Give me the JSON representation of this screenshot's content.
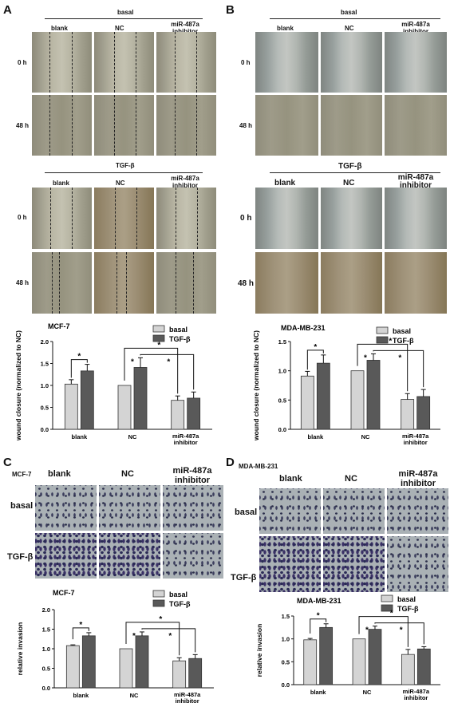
{
  "panels": {
    "A": {
      "letter": "A",
      "top_group": "basal",
      "bottom_group": "TGF-β",
      "times": [
        "0 h",
        "48 h"
      ],
      "columns": [
        "blank",
        "NC",
        "miR-487a inhibitor"
      ]
    },
    "B": {
      "letter": "B",
      "top_group": "basal",
      "bottom_group": "TGF-β",
      "times": [
        "0 h",
        "48 h"
      ],
      "columns": [
        "blank",
        "NC",
        "miR-487a inhibitor"
      ]
    },
    "C": {
      "letter": "C",
      "cell_line": "MCF-7",
      "rows": [
        "basal",
        "TGF-β"
      ],
      "columns": [
        "blank",
        "NC",
        "miR-487a inhibitor"
      ]
    },
    "D": {
      "letter": "D",
      "cell_line": "MDA-MB-231",
      "rows": [
        "basal",
        "TGF-β"
      ],
      "columns": [
        "blank",
        "NC",
        "miR-487a inhibitor"
      ]
    }
  },
  "colors": {
    "basal": "#d4d4d4",
    "tgf": "#595959"
  },
  "chart_data": [
    {
      "id": "A-chart",
      "type": "bar",
      "title": "MCF-7",
      "ylabel": "wound closure (normalized to NC)",
      "categories": [
        "blank",
        "NC",
        "miR-487a inhibitor"
      ],
      "ylim": [
        0.0,
        2.0
      ],
      "yticks": [
        "0.0",
        "0.5",
        "1.0",
        "1.5",
        "2.0"
      ],
      "series": [
        {
          "name": "basal",
          "values": [
            1.03,
            1.0,
            0.66
          ],
          "errors": [
            0.1,
            0.0,
            0.1
          ]
        },
        {
          "name": "TGF-β",
          "values": [
            1.33,
            1.41,
            0.71
          ],
          "errors": [
            0.15,
            0.22,
            0.14
          ]
        }
      ],
      "legend": "top-right",
      "significance": "*"
    },
    {
      "id": "B-chart",
      "type": "bar",
      "title": "MDA-MB-231",
      "ylabel": "wound closure (normalized to NC)",
      "categories": [
        "blank",
        "NC",
        "miR-487a inhibitor"
      ],
      "ylim": [
        0.0,
        1.5
      ],
      "yticks": [
        "0.0",
        "0.5",
        "1.0",
        "1.5"
      ],
      "series": [
        {
          "name": "basal",
          "values": [
            0.91,
            1.0,
            0.51
          ],
          "errors": [
            0.08,
            0.0,
            0.1
          ]
        },
        {
          "name": "TGF-β",
          "values": [
            1.13,
            1.18,
            0.56
          ],
          "errors": [
            0.14,
            0.11,
            0.12
          ]
        }
      ],
      "legend": "top-right",
      "significance": "*"
    },
    {
      "id": "C-chart",
      "type": "bar",
      "title": "MCF-7",
      "ylabel": "relative invasion",
      "categories": [
        "blank",
        "NC",
        "miR-487a inhibitor"
      ],
      "ylim": [
        0.0,
        2.0
      ],
      "yticks": [
        "0.0",
        "0.5",
        "1.0",
        "1.5",
        "2.0"
      ],
      "series": [
        {
          "name": "basal",
          "values": [
            1.08,
            1.0,
            0.69
          ],
          "errors": [
            0.02,
            0.0,
            0.08
          ]
        },
        {
          "name": "TGF-β",
          "values": [
            1.33,
            1.33,
            0.75
          ],
          "errors": [
            0.08,
            0.1,
            0.1
          ]
        }
      ],
      "legend": "top-right",
      "significance": "*"
    },
    {
      "id": "D-chart",
      "type": "bar",
      "title": "MDA-MB-231",
      "ylabel": "relative invasion",
      "categories": [
        "blank",
        "NC",
        "miR-487a inhibitor"
      ],
      "ylim": [
        0.0,
        1.5
      ],
      "yticks": [
        "0.0",
        "0.5",
        "1.0",
        "1.5"
      ],
      "series": [
        {
          "name": "basal",
          "values": [
            0.98,
            1.0,
            0.66
          ],
          "errors": [
            0.03,
            0.0,
            0.11
          ]
        },
        {
          "name": "TGF-β",
          "values": [
            1.25,
            1.21,
            0.78
          ],
          "errors": [
            0.08,
            0.07,
            0.05
          ]
        }
      ],
      "legend": "top-right",
      "significance": "*"
    }
  ]
}
